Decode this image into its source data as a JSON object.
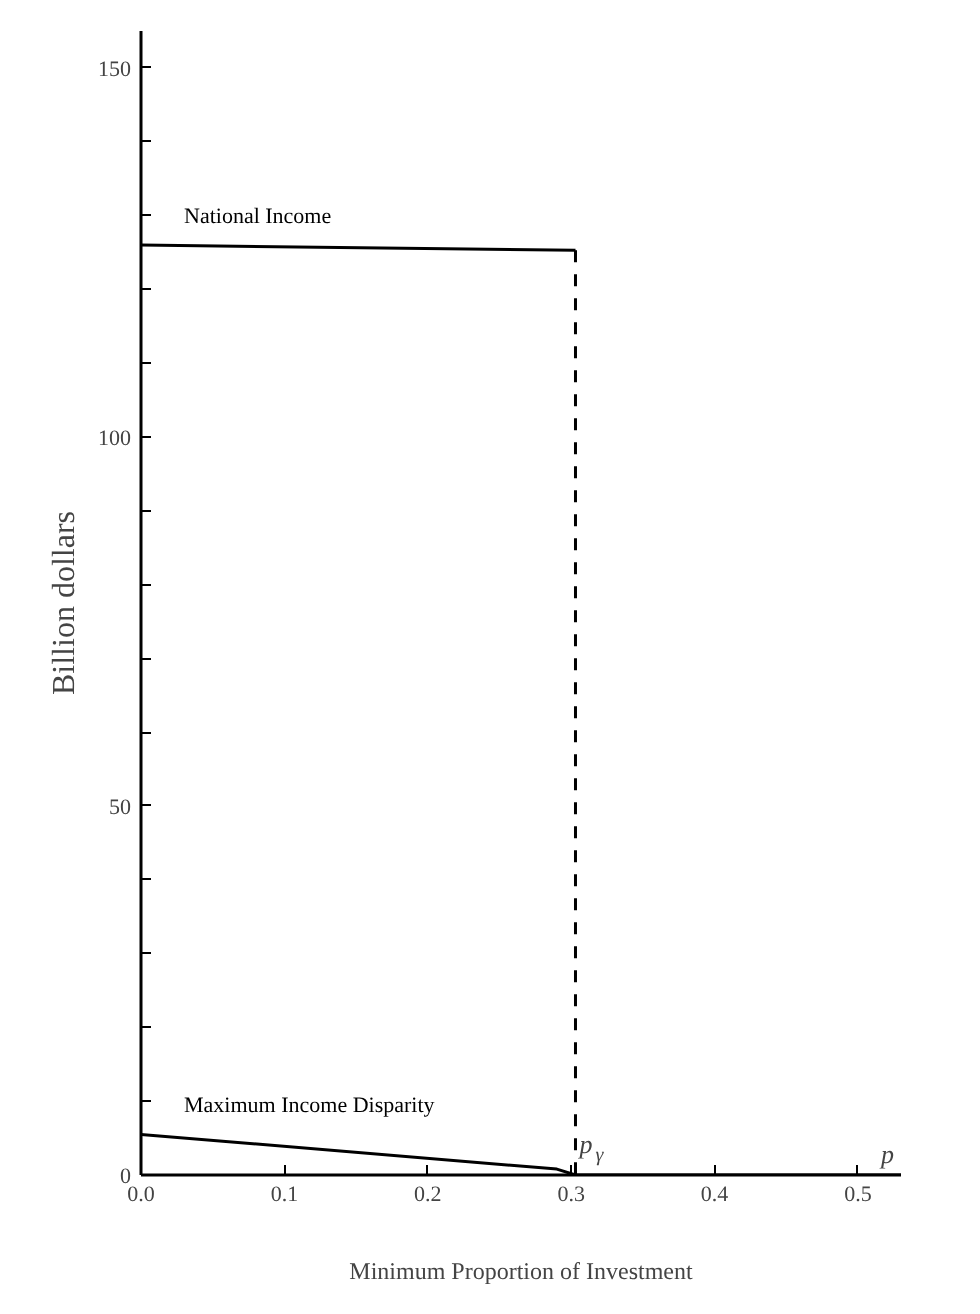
{
  "chart_data": {
    "type": "line",
    "xlabel": "Minimum Proportion of Investment",
    "ylabel": "Billion dollars",
    "xlim": [
      0,
      0.53
    ],
    "ylim": [
      0,
      155
    ],
    "xticks": [
      {
        "value": 0,
        "label": "0.0"
      },
      0.1,
      0.2,
      0.3,
      0.4,
      0.5
    ],
    "yticks": [
      0,
      {
        "value": 10,
        "label": null
      },
      {
        "value": 20,
        "label": null
      },
      {
        "value": 30,
        "label": null
      },
      {
        "value": 40,
        "label": null
      },
      50,
      {
        "value": 60,
        "label": null
      },
      {
        "value": 70,
        "label": null
      },
      {
        "value": 80,
        "label": null
      },
      {
        "value": 90,
        "label": null
      },
      100,
      {
        "value": 110,
        "label": null
      },
      {
        "value": 120,
        "label": null
      },
      {
        "value": 130,
        "label": null
      },
      {
        "value": 140,
        "label": null
      },
      150
    ],
    "series": [
      {
        "name": "National Income",
        "color": "#000000",
        "x": [
          0,
          0.303
        ],
        "values": [
          126,
          125.3
        ],
        "line_style": "solid"
      },
      {
        "color": "#000000",
        "x": [
          0.303,
          0.303
        ],
        "values": [
          125.3,
          0
        ],
        "line_style": "dashed"
      },
      {
        "name": "Maximum Income Disparity",
        "color": "#000000",
        "x": [
          0,
          0.29,
          0.303,
          0.53
        ],
        "values": [
          5.5,
          0.8,
          0,
          0
        ],
        "line_style": "solid"
      }
    ],
    "annotations": [
      {
        "text": "p$_{γ}$",
        "x": 0.303,
        "y": 0
      },
      {
        "text": "p",
        "x": 0.53,
        "y": 0
      }
    ],
    "grid": false,
    "marker": "none"
  }
}
